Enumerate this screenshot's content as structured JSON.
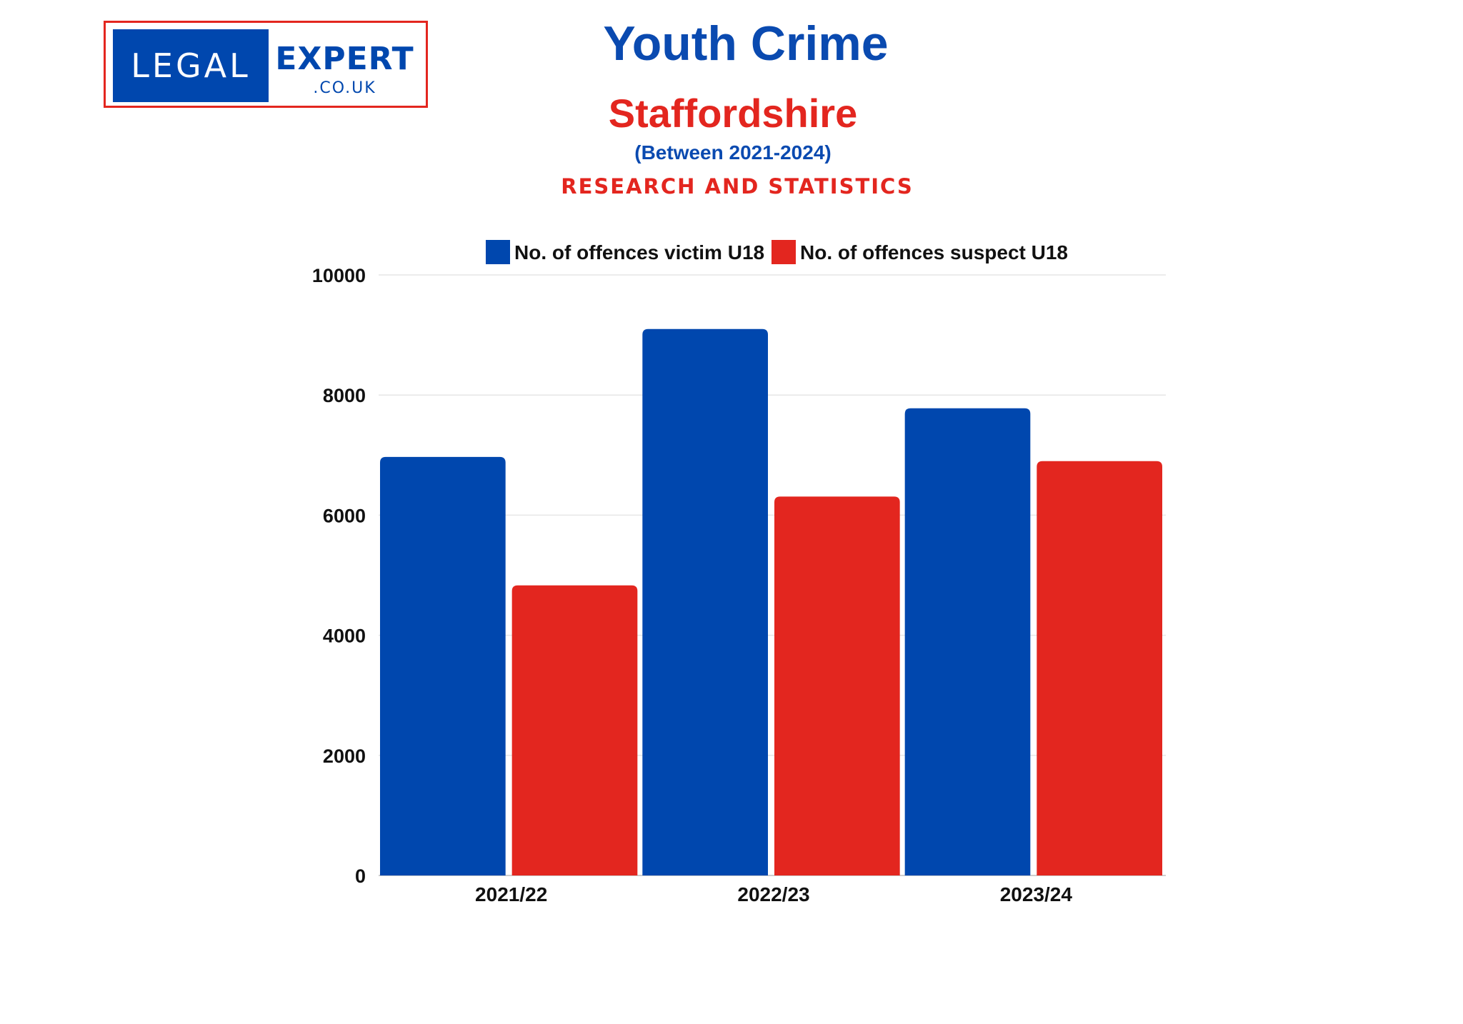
{
  "logo": {
    "left": "LEGAL",
    "right": "EXPERT",
    "domain": ".CO.UK"
  },
  "header": {
    "title": "Youth Crime",
    "subtitle": "Staffordshire",
    "period": "(Between 2021-2024)",
    "tagline": "RESEARCH AND STATISTICS"
  },
  "colors": {
    "blue": "#0047ae",
    "red": "#e3261f",
    "grid": "#e6e6e6"
  },
  "chart_data": {
    "type": "bar",
    "categories": [
      "2021/22",
      "2022/23",
      "2023/24"
    ],
    "series": [
      {
        "name": "No. of offences victim U18",
        "values": [
          6970,
          9100,
          7780
        ],
        "color": "#0047ae"
      },
      {
        "name": "No. of offences suspect U18",
        "values": [
          4830,
          6310,
          6900
        ],
        "color": "#e3261f"
      }
    ],
    "ylim": [
      0,
      10000
    ],
    "yticks": [
      "0",
      "2000",
      "4000",
      "6000",
      "8000",
      "10000"
    ],
    "xlabel": "",
    "ylabel": "",
    "grid": true,
    "legend": "top"
  }
}
